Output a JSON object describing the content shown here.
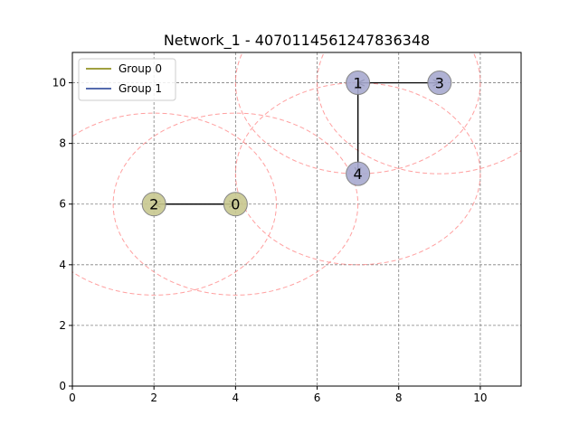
{
  "chart_data": {
    "type": "scatter",
    "title": "Network_1 - 4070114561247836348",
    "xlim": [
      0,
      11
    ],
    "ylim": [
      0,
      11
    ],
    "x_ticks": [
      0,
      2,
      4,
      6,
      8,
      10
    ],
    "y_ticks": [
      0,
      2,
      4,
      6,
      8,
      10
    ],
    "grid": true,
    "legend": {
      "placement": "top-left",
      "entries": [
        {
          "label": "Group 0",
          "color": "#808000"
        },
        {
          "label": "Group 1",
          "color": "#1f3a93"
        }
      ]
    },
    "range_radius": 3,
    "range_color": "#ff8080",
    "nodes": [
      {
        "id": "0",
        "x": 4,
        "y": 6,
        "group": 0,
        "fill": "#c8c890"
      },
      {
        "id": "1",
        "x": 7,
        "y": 10,
        "group": 1,
        "fill": "#a8aad0"
      },
      {
        "id": "2",
        "x": 2,
        "y": 6,
        "group": 0,
        "fill": "#c8c890"
      },
      {
        "id": "3",
        "x": 9,
        "y": 10,
        "group": 1,
        "fill": "#a8aad0"
      },
      {
        "id": "4",
        "x": 7,
        "y": 7,
        "group": 1,
        "fill": "#a8aad0"
      }
    ],
    "edges": [
      {
        "from": "0",
        "to": "2"
      },
      {
        "from": "2",
        "to": "0"
      },
      {
        "from": "1",
        "to": "3"
      },
      {
        "from": "3",
        "to": "1"
      },
      {
        "from": "1",
        "to": "4"
      },
      {
        "from": "4",
        "to": "1"
      }
    ]
  }
}
